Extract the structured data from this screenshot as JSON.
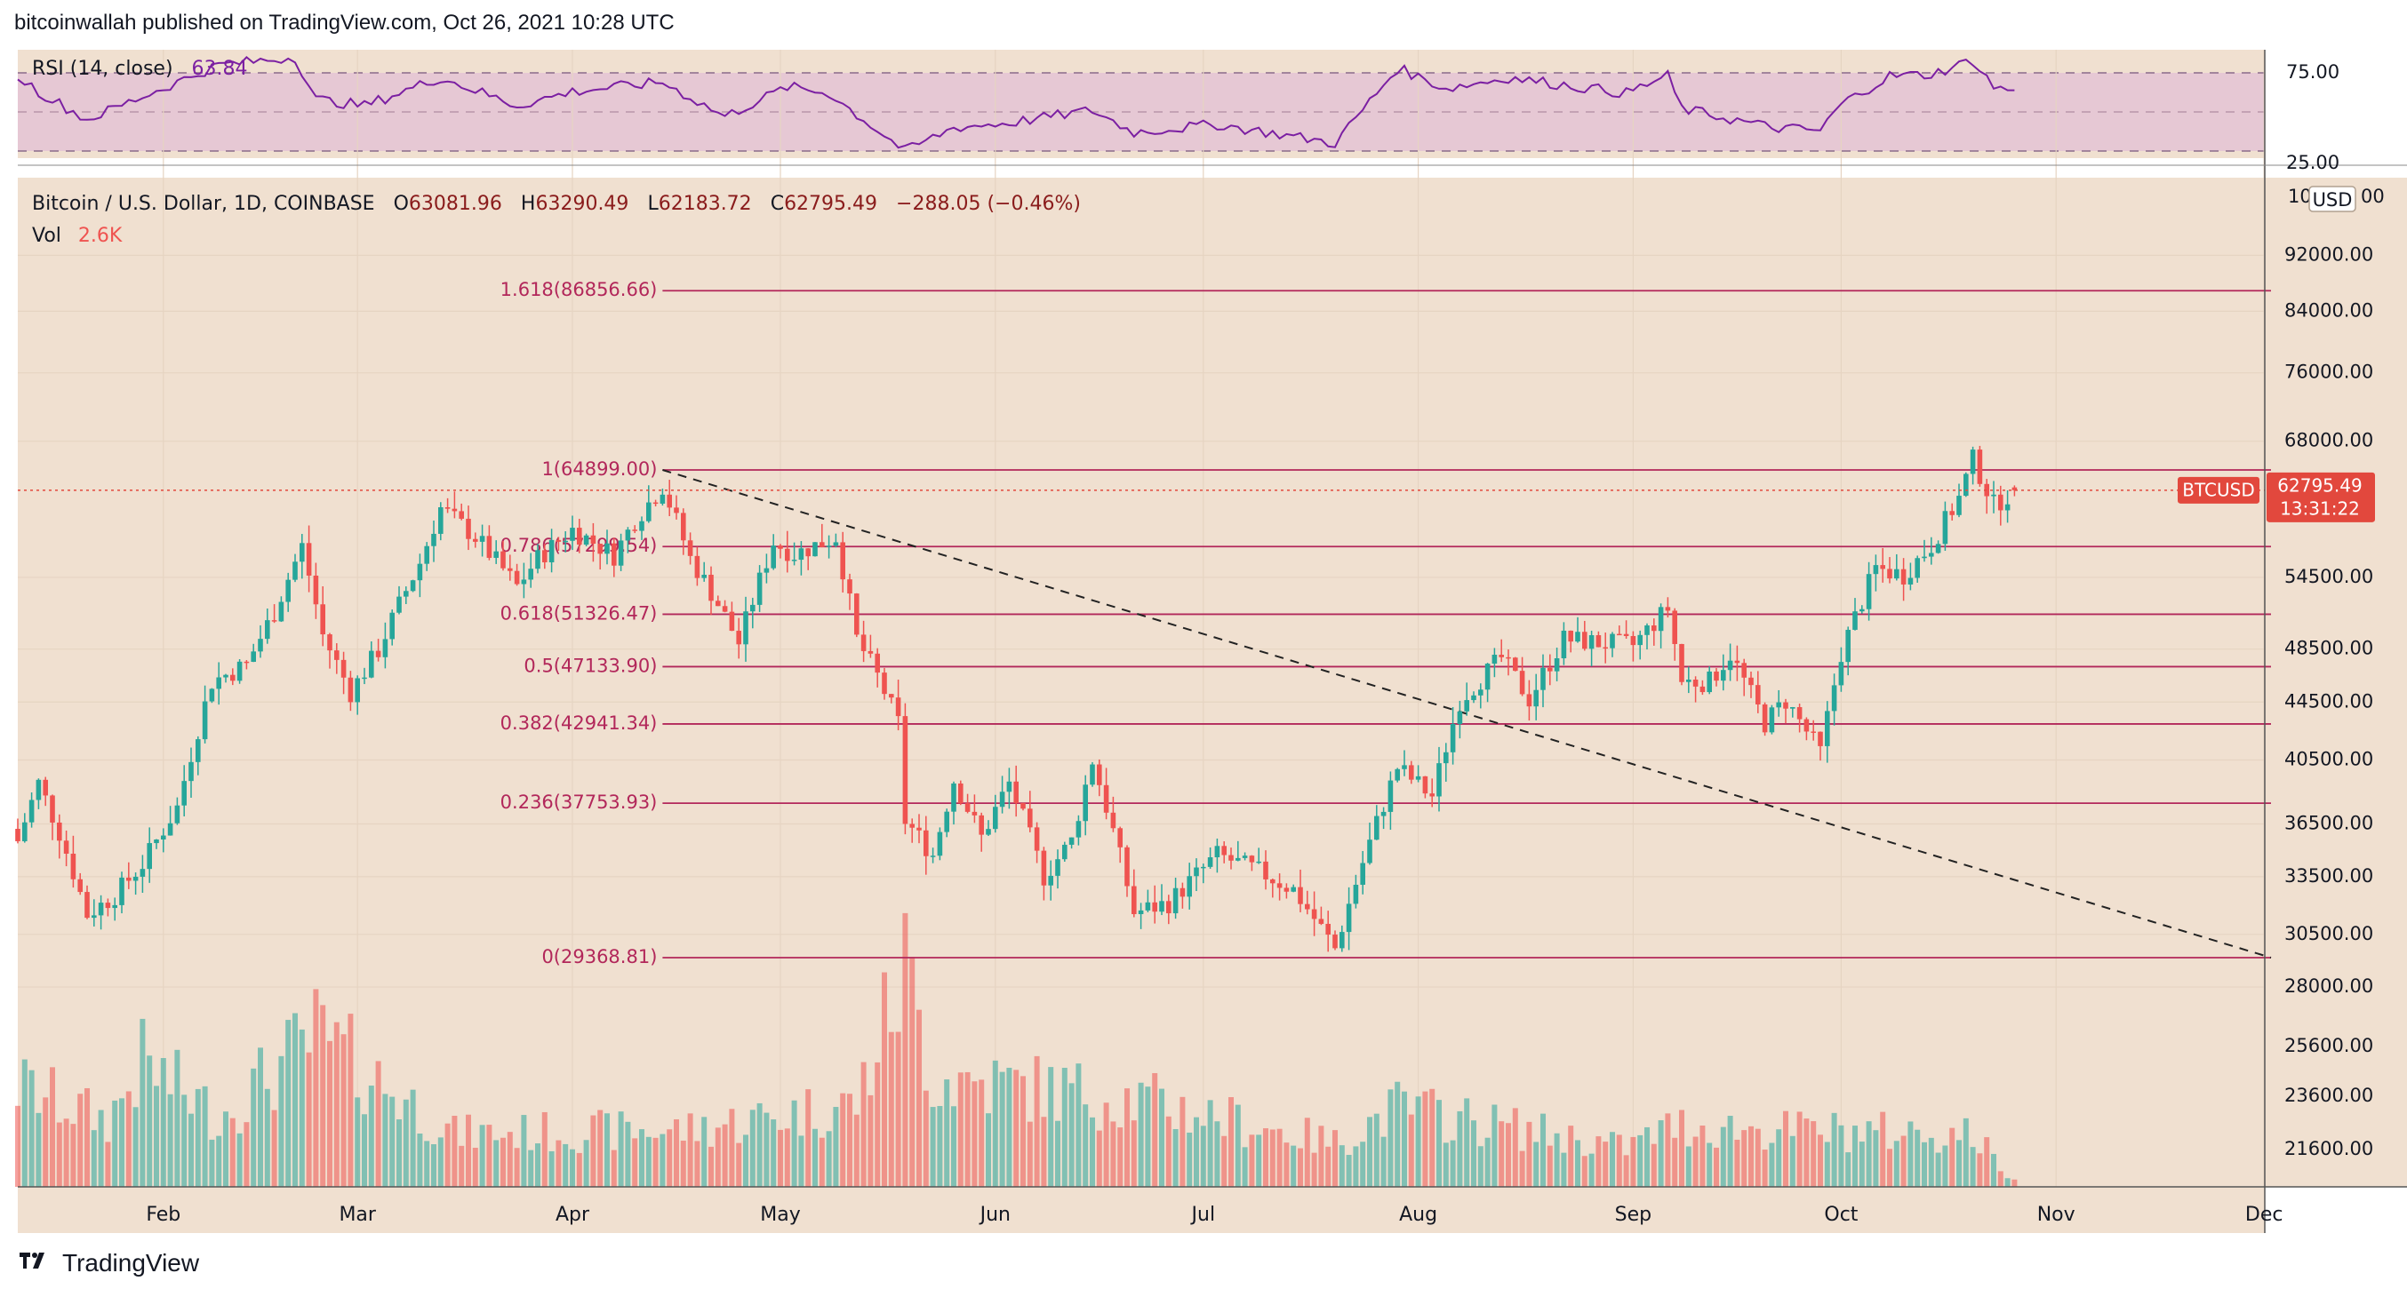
{
  "header": {
    "publish_line": "bitcoinwallah published on TradingView.com, Oct 26, 2021 10:28 UTC"
  },
  "footer": {
    "brand": "TradingView",
    "logo_icon": "tradingview-logo-icon"
  },
  "colors": {
    "panel_bg": "#f0e0d0",
    "rsi_band": "#e6c8d4",
    "up": "#26a69a",
    "down": "#ef5350",
    "fib_line": "#b2275a",
    "fib_text": "#b2275a",
    "rsi_line": "#7b1fa2",
    "price_tag": "#e2483d"
  },
  "rsi": {
    "label": "RSI (14, close)",
    "value": "63.84",
    "upper_label": "75.00",
    "lower_label": "25.00"
  },
  "legend": {
    "symbol": "Bitcoin / U.S. Dollar, 1D, COINBASE",
    "open_label": "O",
    "open": "63081.96",
    "high_label": "H",
    "high": "63290.49",
    "low_label": "L",
    "low": "62183.72",
    "close_label": "C",
    "close": "62795.49",
    "change": "−288.05 (−0.46%)",
    "vol_label": "Vol",
    "vol_value": "2.6K"
  },
  "price_axis": {
    "currency_button": "USD",
    "unit_prefix": "10",
    "unit_suffix": "00",
    "ticks": [
      "92000.00",
      "84000.00",
      "76000.00",
      "68000.00",
      "54500.00",
      "48500.00",
      "44500.00",
      "40500.00",
      "36500.00",
      "33500.00",
      "30500.00",
      "28000.00",
      "25600.00",
      "23600.00",
      "21600.00"
    ]
  },
  "current_price": {
    "symbol_tag": "BTCUSD",
    "price": "62795.49",
    "countdown": "13:31:22"
  },
  "chart_data": {
    "type": "candlestick",
    "symbol": "BTCUSD",
    "timeframe": "1D",
    "x_range": [
      "2021-01-11",
      "2021-12-05"
    ],
    "y_scale": "log",
    "months": [
      "Feb",
      "Mar",
      "Apr",
      "May",
      "Jun",
      "Jul",
      "Aug",
      "Sep",
      "Oct",
      "Nov",
      "Dec"
    ],
    "fib_levels": [
      {
        "label": "1.618(86856.66)",
        "value": 86856.66
      },
      {
        "label": "1(64899.00)",
        "value": 64899.0
      },
      {
        "label": "0.786(57299.54)",
        "value": 57299.54
      },
      {
        "label": "0.618(51326.47)",
        "value": 51326.47
      },
      {
        "label": "0.5(47133.90)",
        "value": 47133.9
      },
      {
        "label": "0.382(42941.34)",
        "value": 42941.34
      },
      {
        "label": "0.236(37753.93)",
        "value": 37753.93
      },
      {
        "label": "0(29368.81)",
        "value": 29368.81
      }
    ],
    "trendline": {
      "from": [
        "2021-04-14",
        64899
      ],
      "to": [
        "2021-12-02",
        29368.81
      ],
      "style": "dashed"
    },
    "close_path": [
      [
        "2021-01-11",
        35500
      ],
      [
        "2021-01-14",
        39000
      ],
      [
        "2021-01-17",
        36000
      ],
      [
        "2021-01-21",
        31500
      ],
      [
        "2021-01-25",
        32500
      ],
      [
        "2021-01-29",
        34200
      ],
      [
        "2021-02-03",
        37500
      ],
      [
        "2021-02-08",
        46000
      ],
      [
        "2021-02-13",
        47300
      ],
      [
        "2021-02-17",
        51500
      ],
      [
        "2021-02-21",
        57300
      ],
      [
        "2021-02-24",
        49600
      ],
      [
        "2021-02-28",
        45200
      ],
      [
        "2021-03-04",
        48400
      ],
      [
        "2021-03-10",
        55800
      ],
      [
        "2021-03-13",
        61000
      ],
      [
        "2021-03-18",
        58200
      ],
      [
        "2021-03-24",
        53700
      ],
      [
        "2021-03-27",
        56200
      ],
      [
        "2021-04-01",
        58900
      ],
      [
        "2021-04-07",
        56500
      ],
      [
        "2021-04-10",
        59800
      ],
      [
        "2021-04-14",
        63200
      ],
      [
        "2021-04-18",
        56200
      ],
      [
        "2021-04-22",
        52200
      ],
      [
        "2021-04-25",
        49000
      ],
      [
        "2021-04-30",
        57700
      ],
      [
        "2021-05-03",
        56600
      ],
      [
        "2021-05-09",
        58200
      ],
      [
        "2021-05-12",
        49300
      ],
      [
        "2021-05-15",
        46400
      ],
      [
        "2021-05-18",
        43000
      ],
      [
        "2021-05-19",
        36700
      ],
      [
        "2021-05-23",
        34700
      ],
      [
        "2021-05-26",
        39200
      ],
      [
        "2021-05-30",
        35700
      ],
      [
        "2021-06-03",
        39000
      ],
      [
        "2021-06-08",
        33500
      ],
      [
        "2021-06-12",
        35500
      ],
      [
        "2021-06-15",
        40500
      ],
      [
        "2021-06-21",
        31600
      ],
      [
        "2021-06-26",
        32100
      ],
      [
        "2021-07-03",
        34700
      ],
      [
        "2021-07-09",
        33800
      ],
      [
        "2021-07-14",
        32800
      ],
      [
        "2021-07-20",
        29800
      ],
      [
        "2021-07-25",
        35400
      ],
      [
        "2021-07-29",
        40000
      ],
      [
        "2021-08-03",
        38200
      ],
      [
        "2021-08-07",
        44600
      ],
      [
        "2021-08-13",
        47800
      ],
      [
        "2021-08-17",
        44700
      ],
      [
        "2021-08-22",
        49300
      ],
      [
        "2021-08-27",
        49000
      ],
      [
        "2021-09-01",
        48800
      ],
      [
        "2021-09-06",
        51800
      ],
      [
        "2021-09-08",
        46000
      ],
      [
        "2021-09-12",
        46000
      ],
      [
        "2021-09-15",
        48100
      ],
      [
        "2021-09-20",
        43000
      ],
      [
        "2021-09-23",
        44600
      ],
      [
        "2021-09-28",
        41000
      ],
      [
        "2021-10-01",
        48200
      ],
      [
        "2021-10-06",
        55300
      ],
      [
        "2021-10-10",
        54700
      ],
      [
        "2021-10-14",
        57400
      ],
      [
        "2021-10-18",
        62000
      ],
      [
        "2021-10-20",
        66000
      ],
      [
        "2021-10-23",
        61300
      ],
      [
        "2021-10-26",
        62795.49
      ]
    ],
    "volume_path": [
      [
        "2021-01-11",
        2.3
      ],
      [
        "2021-01-24",
        1.5
      ],
      [
        "2021-01-29",
        2.8
      ],
      [
        "2021-02-09",
        1.6
      ],
      [
        "2021-02-23",
        3.4
      ],
      [
        "2021-03-15",
        1.2
      ],
      [
        "2021-04-18",
        1.3
      ],
      [
        "2021-05-12",
        1.9
      ],
      [
        "2021-05-19",
        5.0
      ],
      [
        "2021-05-23",
        2.5
      ],
      [
        "2021-06-21",
        2.0
      ],
      [
        "2021-07-20",
        1.0
      ],
      [
        "2021-07-29",
        1.8
      ],
      [
        "2021-08-31",
        0.9
      ],
      [
        "2021-09-07",
        1.4
      ],
      [
        "2021-09-20",
        1.3
      ],
      [
        "2021-10-20",
        1.2
      ],
      [
        "2021-10-26",
        0.1
      ]
    ],
    "rsi": {
      "label": "RSI (14, close)",
      "period": 14,
      "last": 63.84,
      "upper": 75,
      "lower": 25
    },
    "rsi_path": [
      [
        "2021-01-11",
        73
      ],
      [
        "2021-01-14",
        63
      ],
      [
        "2021-01-21",
        45
      ],
      [
        "2021-01-28",
        58
      ],
      [
        "2021-02-09",
        80
      ],
      [
        "2021-02-20",
        85
      ],
      [
        "2021-02-23",
        58
      ],
      [
        "2021-03-02",
        54
      ],
      [
        "2021-03-13",
        72
      ],
      [
        "2021-03-24",
        54
      ],
      [
        "2021-04-01",
        63
      ],
      [
        "2021-04-14",
        69
      ],
      [
        "2021-04-23",
        47
      ],
      [
        "2021-05-02",
        66
      ],
      [
        "2021-05-08",
        62
      ],
      [
        "2021-05-13",
        45
      ],
      [
        "2021-05-19",
        25
      ],
      [
        "2021-05-26",
        40
      ],
      [
        "2021-06-03",
        43
      ],
      [
        "2021-06-15",
        51
      ],
      [
        "2021-06-21",
        37
      ],
      [
        "2021-07-03",
        42
      ],
      [
        "2021-07-20",
        30
      ],
      [
        "2021-07-29",
        78
      ],
      [
        "2021-08-05",
        65
      ],
      [
        "2021-08-14",
        72
      ],
      [
        "2021-08-31",
        62
      ],
      [
        "2021-09-06",
        73
      ],
      [
        "2021-09-08",
        52
      ],
      [
        "2021-09-21",
        40
      ],
      [
        "2021-09-28",
        38
      ],
      [
        "2021-10-01",
        55
      ],
      [
        "2021-10-08",
        73
      ],
      [
        "2021-10-14",
        74
      ],
      [
        "2021-10-20",
        83
      ],
      [
        "2021-10-23",
        66
      ],
      [
        "2021-10-26",
        63.84
      ]
    ]
  }
}
